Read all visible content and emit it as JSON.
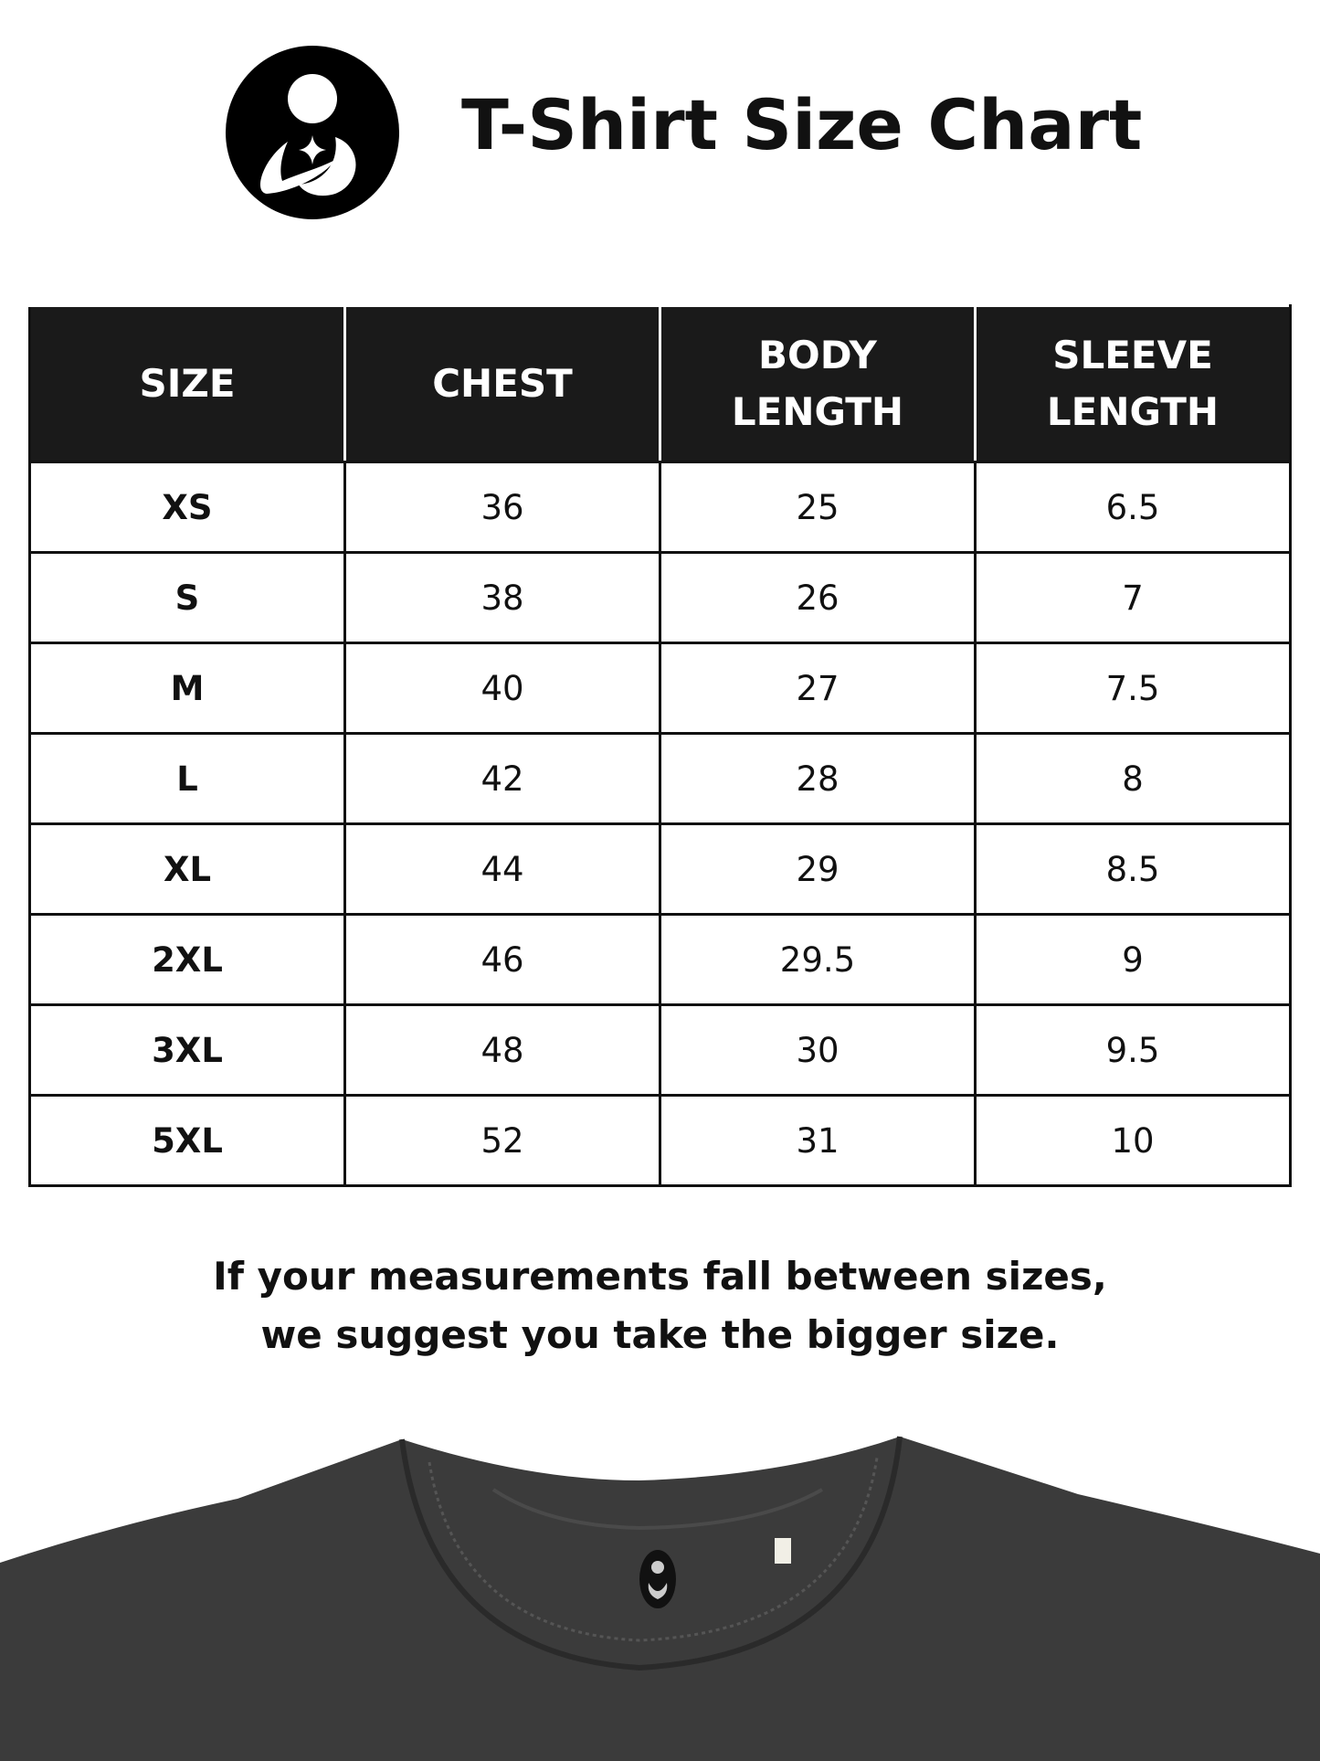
{
  "header": {
    "title": "T-Shirt Size Chart",
    "logo": "mother-child-logo"
  },
  "table": {
    "columns": [
      [
        "SIZE"
      ],
      [
        "CHEST"
      ],
      [
        "BODY",
        "LENGTH"
      ],
      [
        "SLEEVE",
        "LENGTH"
      ]
    ],
    "rows": [
      [
        "XS",
        "36",
        "25",
        "6.5"
      ],
      [
        "S",
        "38",
        "26",
        "7"
      ],
      [
        "M",
        "40",
        "27",
        "7.5"
      ],
      [
        "L",
        "42",
        "28",
        "8"
      ],
      [
        "XL",
        "44",
        "29",
        "8.5"
      ],
      [
        "2XL",
        "46",
        "29.5",
        "9"
      ],
      [
        "3XL",
        "48",
        "30",
        "9.5"
      ],
      [
        "5XL",
        "52",
        "31",
        "10"
      ]
    ]
  },
  "note": {
    "line1": "If your measurements fall between sizes,",
    "line2": "we suggest you take the bigger size."
  },
  "colors": {
    "header_bg": "#1a1a1a",
    "shirt": "#3b3b3b"
  }
}
